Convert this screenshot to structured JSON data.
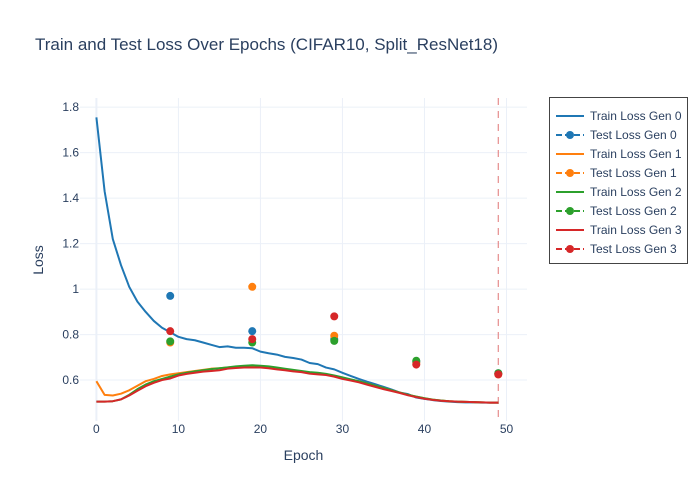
{
  "chart_data": {
    "type": "line",
    "title": "Train and Test Loss Over Epochs (CIFAR10, Split_ResNet18)",
    "xlabel": "Epoch",
    "ylabel": "Loss",
    "xlim": [
      -2,
      52.5
    ],
    "ylim": [
      0.42,
      1.84
    ],
    "x_ticks": [
      0,
      10,
      20,
      30,
      40,
      50
    ],
    "y_ticks": [
      0.6,
      0.8,
      1,
      1.2,
      1.4,
      1.6,
      1.8
    ],
    "grid": true,
    "legend_position": "top-right",
    "vertical_line": {
      "x": 49,
      "color": "#e58c8c",
      "style": "dashed"
    },
    "series": [
      {
        "name": "Train Loss Gen 0",
        "kind": "line",
        "color": "#1f77b4",
        "x": [
          0,
          1,
          2,
          3,
          4,
          5,
          6,
          7,
          8,
          9,
          10,
          11,
          12,
          13,
          14,
          15,
          16,
          17,
          18,
          19,
          20,
          21,
          22,
          23,
          24,
          25,
          26,
          27,
          28,
          29,
          30,
          31,
          32,
          33,
          34,
          35,
          36,
          37,
          38,
          39,
          40,
          41,
          42,
          43,
          44,
          45,
          46,
          47,
          48,
          49
        ],
        "y": [
          1.755,
          1.43,
          1.22,
          1.105,
          1.01,
          0.945,
          0.9,
          0.86,
          0.83,
          0.81,
          0.79,
          0.78,
          0.775,
          0.765,
          0.755,
          0.745,
          0.748,
          0.742,
          0.742,
          0.74,
          0.725,
          0.718,
          0.712,
          0.702,
          0.697,
          0.69,
          0.675,
          0.67,
          0.655,
          0.647,
          0.632,
          0.618,
          0.605,
          0.593,
          0.582,
          0.57,
          0.558,
          0.545,
          0.538,
          0.523,
          0.517,
          0.512,
          0.508,
          0.505,
          0.503,
          0.502,
          0.502,
          0.501,
          0.501,
          0.501
        ]
      },
      {
        "name": "Test Loss Gen 0",
        "kind": "markers",
        "color": "#1f77b4",
        "x": [
          9,
          19,
          29,
          39,
          49
        ],
        "y": [
          0.97,
          0.815,
          0.78,
          0.68,
          0.63
        ]
      },
      {
        "name": "Train Loss Gen 1",
        "kind": "line",
        "color": "#ff7f0e",
        "x": [
          0,
          1,
          2,
          3,
          4,
          5,
          6,
          7,
          8,
          9,
          10,
          11,
          12,
          13,
          14,
          15,
          16,
          17,
          18,
          19,
          20,
          21,
          22,
          23,
          24,
          25,
          26,
          27,
          28,
          29,
          30,
          31,
          32,
          33,
          34,
          35,
          36,
          37,
          38,
          39,
          40,
          41,
          42,
          43,
          44,
          45,
          46,
          47,
          48,
          49
        ],
        "y": [
          0.595,
          0.535,
          0.532,
          0.54,
          0.555,
          0.575,
          0.595,
          0.605,
          0.618,
          0.625,
          0.63,
          0.635,
          0.64,
          0.645,
          0.65,
          0.652,
          0.655,
          0.658,
          0.66,
          0.662,
          0.66,
          0.656,
          0.65,
          0.646,
          0.642,
          0.638,
          0.633,
          0.63,
          0.625,
          0.618,
          0.61,
          0.602,
          0.595,
          0.585,
          0.575,
          0.565,
          0.555,
          0.545,
          0.535,
          0.527,
          0.52,
          0.514,
          0.51,
          0.507,
          0.505,
          0.504,
          0.503,
          0.502,
          0.501,
          0.501
        ]
      },
      {
        "name": "Test Loss Gen 1",
        "kind": "markers",
        "color": "#ff7f0e",
        "x": [
          9,
          19,
          29,
          39,
          49
        ],
        "y": [
          0.765,
          1.01,
          0.795,
          0.675,
          0.625
        ]
      },
      {
        "name": "Train Loss Gen 2",
        "kind": "line",
        "color": "#2ca02c",
        "x": [
          0,
          1,
          2,
          3,
          4,
          5,
          6,
          7,
          8,
          9,
          10,
          11,
          12,
          13,
          14,
          15,
          16,
          17,
          18,
          19,
          20,
          21,
          22,
          23,
          24,
          25,
          26,
          27,
          28,
          29,
          30,
          31,
          32,
          33,
          34,
          35,
          36,
          37,
          38,
          39,
          40,
          41,
          42,
          43,
          44,
          45,
          46,
          47,
          48,
          49
        ],
        "y": [
          0.505,
          0.505,
          0.507,
          0.515,
          0.535,
          0.56,
          0.58,
          0.595,
          0.605,
          0.615,
          0.625,
          0.632,
          0.638,
          0.643,
          0.648,
          0.652,
          0.656,
          0.66,
          0.663,
          0.665,
          0.663,
          0.66,
          0.655,
          0.65,
          0.645,
          0.64,
          0.635,
          0.632,
          0.627,
          0.62,
          0.612,
          0.603,
          0.595,
          0.585,
          0.575,
          0.565,
          0.555,
          0.545,
          0.535,
          0.527,
          0.52,
          0.514,
          0.51,
          0.507,
          0.505,
          0.504,
          0.503,
          0.502,
          0.501,
          0.501
        ]
      },
      {
        "name": "Test Loss Gen 2",
        "kind": "markers",
        "color": "#2ca02c",
        "x": [
          9,
          19,
          29,
          39,
          49
        ],
        "y": [
          0.77,
          0.765,
          0.772,
          0.685,
          0.63
        ]
      },
      {
        "name": "Train Loss Gen 3",
        "kind": "line",
        "color": "#d62728",
        "x": [
          0,
          1,
          2,
          3,
          4,
          5,
          6,
          7,
          8,
          9,
          10,
          11,
          12,
          13,
          14,
          15,
          16,
          17,
          18,
          19,
          20,
          21,
          22,
          23,
          24,
          25,
          26,
          27,
          28,
          29,
          30,
          31,
          32,
          33,
          34,
          35,
          36,
          37,
          38,
          39,
          40,
          41,
          42,
          43,
          44,
          45,
          46,
          47,
          48,
          49
        ],
        "y": [
          0.505,
          0.505,
          0.507,
          0.515,
          0.532,
          0.553,
          0.573,
          0.588,
          0.6,
          0.607,
          0.62,
          0.627,
          0.632,
          0.637,
          0.64,
          0.643,
          0.65,
          0.653,
          0.655,
          0.655,
          0.655,
          0.652,
          0.647,
          0.643,
          0.638,
          0.635,
          0.628,
          0.625,
          0.622,
          0.615,
          0.605,
          0.598,
          0.59,
          0.58,
          0.57,
          0.56,
          0.552,
          0.543,
          0.533,
          0.525,
          0.518,
          0.513,
          0.509,
          0.507,
          0.505,
          0.504,
          0.503,
          0.502,
          0.501,
          0.501
        ]
      },
      {
        "name": "Test Loss Gen 3",
        "kind": "markers",
        "color": "#d62728",
        "x": [
          9,
          19,
          29,
          39,
          49
        ],
        "y": [
          0.815,
          0.78,
          0.88,
          0.668,
          0.625
        ]
      }
    ]
  }
}
